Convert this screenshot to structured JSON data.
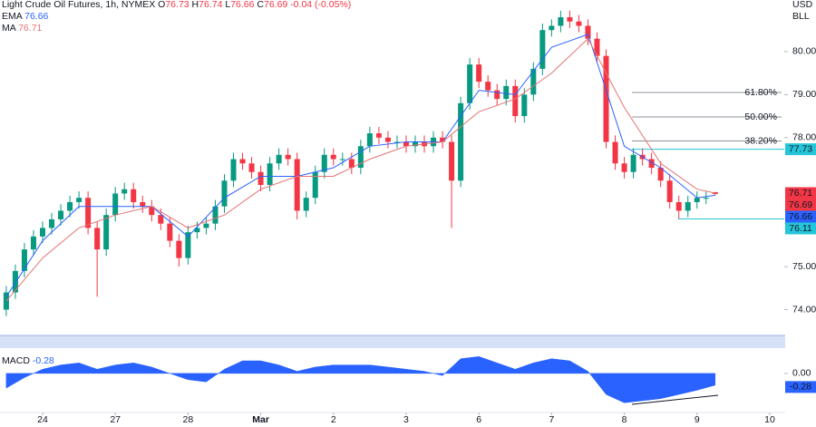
{
  "chart_data": {
    "type": "candlestick",
    "title": "Light Crude Oil Futures, 1h, NYMEX",
    "ohlc_letters": [
      "O",
      "H",
      "L",
      "C"
    ],
    "change": "-0.04 (-0.05%)",
    "currency": "USD",
    "unit": "BLL",
    "xlim": [
      -0.586,
      10.2
    ],
    "xticks": [
      {
        "value": 0,
        "label": "24"
      },
      {
        "value": 1,
        "label": "27"
      },
      {
        "value": 2,
        "label": "28"
      },
      {
        "value": 3,
        "label": "Mar"
      },
      {
        "value": 4,
        "label": "2"
      },
      {
        "value": 5,
        "label": "3"
      },
      {
        "value": 6,
        "label": "6"
      },
      {
        "value": 7,
        "label": "7"
      },
      {
        "value": 8,
        "label": "8"
      },
      {
        "value": 9,
        "label": "9"
      },
      {
        "value": 10,
        "label": "10"
      }
    ],
    "ylim": [
      73.4,
      81.2
    ],
    "yticks": [
      {
        "value": 74,
        "label": "74.00"
      },
      {
        "value": 75,
        "label": "75.00"
      },
      {
        "value": 76,
        "label": "76.00"
      },
      {
        "value": 78,
        "label": "78.00"
      },
      {
        "value": 79,
        "label": "79.00"
      },
      {
        "value": 80,
        "label": "80.00"
      }
    ],
    "grid": false,
    "candles": {
      "up_color": "#089981",
      "down_color": "#f23645",
      "x": [
        -0.5,
        -0.375,
        -0.25,
        -0.125,
        0,
        0.125,
        0.25,
        0.375,
        0.5,
        0.625,
        0.75,
        0.875,
        1,
        1.125,
        1.25,
        1.375,
        1.5,
        1.625,
        1.75,
        1.875,
        2,
        2.125,
        2.25,
        2.375,
        2.5,
        2.625,
        2.75,
        2.875,
        3,
        3.125,
        3.25,
        3.375,
        3.5,
        3.625,
        3.75,
        3.875,
        4,
        4.125,
        4.25,
        4.375,
        4.5,
        4.625,
        4.75,
        4.875,
        5,
        5.125,
        5.25,
        5.375,
        5.5,
        5.625,
        5.75,
        5.875,
        6,
        6.125,
        6.25,
        6.375,
        6.5,
        6.625,
        6.75,
        6.875,
        7,
        7.125,
        7.25,
        7.375,
        7.5,
        7.625,
        7.75,
        7.875,
        8,
        8.125,
        8.25,
        8.375,
        8.5,
        8.625,
        8.75,
        8.875,
        9,
        9.125,
        9.25
      ],
      "open": [
        74.0,
        74.4,
        74.9,
        75.4,
        75.7,
        75.9,
        76.1,
        76.3,
        76.5,
        76.6,
        75.9,
        75.4,
        76.2,
        76.7,
        76.8,
        76.5,
        76.4,
        76.2,
        76.0,
        75.6,
        75.2,
        75.8,
        75.9,
        76.0,
        76.4,
        77.0,
        77.5,
        77.4,
        77.2,
        76.9,
        77.4,
        77.6,
        77.5,
        76.3,
        76.6,
        77.2,
        77.6,
        77.5,
        77.5,
        77.3,
        77.8,
        78.1,
        78.0,
        77.9,
        77.9,
        77.8,
        77.9,
        77.8,
        78.0,
        77.9,
        77.0,
        78.8,
        79.7,
        79.3,
        79.1,
        78.9,
        79.2,
        78.5,
        79.0,
        79.6,
        80.5,
        80.6,
        80.8,
        80.7,
        80.6,
        80.3,
        79.9,
        77.9,
        77.4,
        77.2,
        77.6,
        77.5,
        77.3,
        77.0,
        76.5,
        76.3,
        76.5,
        76.6,
        76.73
      ],
      "high": [
        74.55,
        75.05,
        75.55,
        75.85,
        76.05,
        76.25,
        76.45,
        76.65,
        76.75,
        76.75,
        76.05,
        76.35,
        76.85,
        76.95,
        76.95,
        76.65,
        76.55,
        76.35,
        76.15,
        75.75,
        75.95,
        76.05,
        76.15,
        76.55,
        77.15,
        77.65,
        77.65,
        77.55,
        77.35,
        77.55,
        77.75,
        77.75,
        77.65,
        76.75,
        77.35,
        77.75,
        77.75,
        77.65,
        77.65,
        77.95,
        78.25,
        78.25,
        78.15,
        78.05,
        78.05,
        78.05,
        78.05,
        78.15,
        78.15,
        78.05,
        78.95,
        79.85,
        79.85,
        79.45,
        79.25,
        79.35,
        79.35,
        79.15,
        79.75,
        80.65,
        80.75,
        80.95,
        80.95,
        80.85,
        80.75,
        80.45,
        80.05,
        78.05,
        77.55,
        77.75,
        77.75,
        77.65,
        77.45,
        77.15,
        76.65,
        76.65,
        76.75,
        76.75,
        76.74
      ],
      "low": [
        73.85,
        74.25,
        74.75,
        75.25,
        75.55,
        75.75,
        75.95,
        76.15,
        76.35,
        75.75,
        74.3,
        75.25,
        76.05,
        76.55,
        76.35,
        76.25,
        76.05,
        75.85,
        75.45,
        75.0,
        75.05,
        75.65,
        75.75,
        75.85,
        76.25,
        76.85,
        77.25,
        77.05,
        76.75,
        76.75,
        77.25,
        77.35,
        76.1,
        76.15,
        76.45,
        77.05,
        77.35,
        77.35,
        77.15,
        77.15,
        77.65,
        77.85,
        77.75,
        77.75,
        77.65,
        77.65,
        77.65,
        77.65,
        77.75,
        75.9,
        76.85,
        78.65,
        79.15,
        78.95,
        78.75,
        78.75,
        78.35,
        78.35,
        78.85,
        79.45,
        80.35,
        80.45,
        80.55,
        80.45,
        80.15,
        79.75,
        77.75,
        77.25,
        77.05,
        77.05,
        77.35,
        77.15,
        76.85,
        76.35,
        76.11,
        76.15,
        76.35,
        76.45,
        76.66
      ],
      "close": [
        74.4,
        74.9,
        75.4,
        75.7,
        75.9,
        76.1,
        76.3,
        76.5,
        76.6,
        75.9,
        75.4,
        76.2,
        76.7,
        76.8,
        76.5,
        76.4,
        76.2,
        76.0,
        75.6,
        75.2,
        75.8,
        75.9,
        76.0,
        76.4,
        77.0,
        77.5,
        77.4,
        77.2,
        76.9,
        77.4,
        77.6,
        77.5,
        76.3,
        76.6,
        77.2,
        77.6,
        77.5,
        77.5,
        77.3,
        77.8,
        78.1,
        78.0,
        77.9,
        77.9,
        77.8,
        77.9,
        77.8,
        78.0,
        77.9,
        77.0,
        78.8,
        79.7,
        79.3,
        79.1,
        78.9,
        79.2,
        78.5,
        79.0,
        79.6,
        80.5,
        80.6,
        80.8,
        80.7,
        80.6,
        80.3,
        79.9,
        77.9,
        77.4,
        77.2,
        77.6,
        77.5,
        77.3,
        77.0,
        76.5,
        76.3,
        76.5,
        76.6,
        76.6,
        76.69
      ]
    },
    "series": [
      {
        "name": "EMA",
        "color": "#2962ff",
        "x": [
          -0.5,
          0,
          0.5,
          1,
          1.5,
          2,
          2.5,
          3,
          3.5,
          4,
          4.5,
          5,
          5.5,
          6,
          6.5,
          7,
          7.5,
          8,
          8.5,
          9,
          9.25
        ],
        "values": [
          74.3,
          75.6,
          76.4,
          76.4,
          76.4,
          75.7,
          76.6,
          77.1,
          77.1,
          77.3,
          77.8,
          77.9,
          77.9,
          79.1,
          79.0,
          80.1,
          80.4,
          77.8,
          77.3,
          76.6,
          76.66
        ]
      },
      {
        "name": "MA",
        "color": "#e57373",
        "x": [
          -0.5,
          0,
          0.5,
          1,
          1.5,
          2,
          2.5,
          3,
          3.5,
          4,
          4.5,
          5,
          5.5,
          6,
          6.5,
          7,
          7.5,
          8,
          8.5,
          9,
          9.25
        ],
        "values": [
          74.2,
          75.2,
          75.9,
          76.2,
          76.4,
          75.9,
          76.2,
          76.8,
          77.1,
          77.1,
          77.5,
          77.8,
          77.9,
          78.6,
          78.9,
          79.5,
          80.3,
          78.7,
          77.4,
          76.8,
          76.71
        ]
      }
    ],
    "levels": [
      {
        "value": 77.73,
        "color": "#26c6da"
      },
      {
        "value": 76.11,
        "color": "#26c6da"
      }
    ],
    "fib_levels": [
      {
        "label": "61.80%",
        "value": 79.05
      },
      {
        "label": "50.00%",
        "value": 78.48
      },
      {
        "label": "38.20%",
        "value": 77.92
      }
    ],
    "macd": {
      "name": "MACD",
      "color": "#2962ff",
      "ylim": [
        -0.93,
        0.58
      ],
      "yticks": [
        {
          "value": 0,
          "label": "0.00"
        }
      ],
      "x": [
        -0.5,
        -0.25,
        0,
        0.25,
        0.5,
        0.75,
        1,
        1.25,
        1.5,
        1.75,
        2,
        2.25,
        2.5,
        2.75,
        3,
        3.25,
        3.5,
        3.75,
        4,
        4.25,
        4.5,
        4.75,
        5,
        5.25,
        5.5,
        5.75,
        6,
        6.25,
        6.5,
        6.75,
        7,
        7.25,
        7.5,
        7.75,
        8,
        8.25,
        8.5,
        8.75,
        9,
        9.25
      ],
      "values": [
        -0.35,
        -0.1,
        0.1,
        0.2,
        0.25,
        0.1,
        0.2,
        0.25,
        0.15,
        0.0,
        -0.15,
        -0.2,
        0.1,
        0.3,
        0.3,
        0.2,
        0.05,
        0.15,
        0.2,
        0.2,
        0.2,
        0.15,
        0.1,
        0.05,
        -0.05,
        0.35,
        0.4,
        0.25,
        0.1,
        0.25,
        0.35,
        0.3,
        0.05,
        -0.5,
        -0.7,
        -0.65,
        -0.6,
        -0.5,
        -0.4,
        -0.28
      ]
    }
  }
}
